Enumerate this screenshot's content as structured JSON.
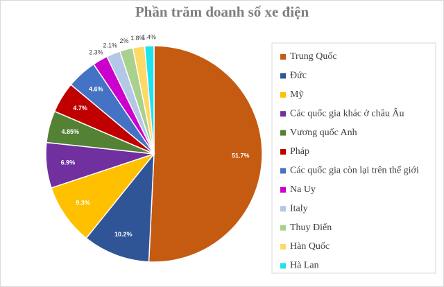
{
  "chart_data": {
    "type": "pie",
    "title": "Phần trăm doanh số xe điện",
    "categories": [
      "Trung Quốc",
      "Đức",
      "Mỹ",
      "Các quốc gia khác ở châu Âu",
      "Vương quốc Anh",
      "Pháp",
      "Các quốc gia còn lại trên thế giới",
      "Na Uy",
      "Italy",
      "Thuy Điển",
      "Hàn Quốc",
      "Hà Lan"
    ],
    "values": [
      51.7,
      10.2,
      9.3,
      6.9,
      4.85,
      4.7,
      4.6,
      2.3,
      2.1,
      2,
      1.8,
      1.4
    ],
    "value_labels": [
      "51.7%",
      "10.2%",
      "9.3%",
      "6.9%",
      "4.85%",
      "4.7%",
      "4.6%",
      "2.3%",
      "2.1%",
      "2%",
      "1.8%",
      "1.4%"
    ],
    "colors": [
      "#c55a11",
      "#2f5597",
      "#ffc000",
      "#7030a0",
      "#548235",
      "#c00000",
      "#4472c4",
      "#cc00cc",
      "#b4c7e7",
      "#a9d18e",
      "#ffd966",
      "#1ee3ef"
    ],
    "legend": "right"
  }
}
